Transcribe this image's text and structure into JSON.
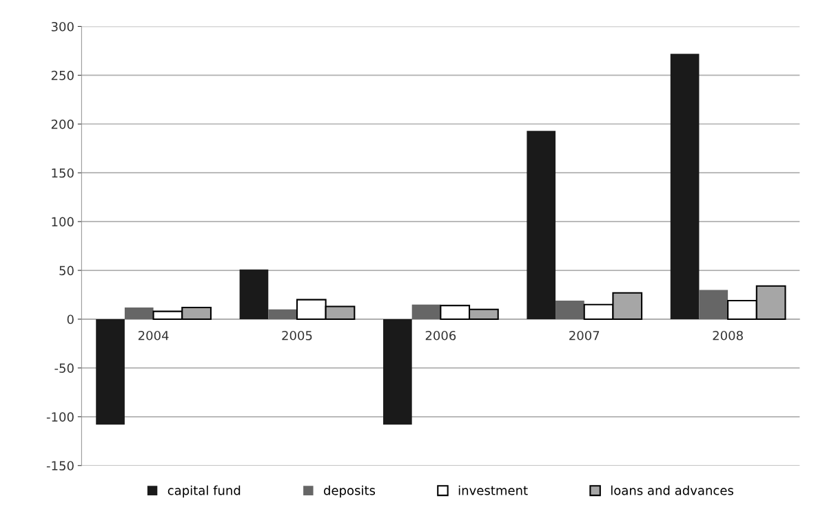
{
  "chart_data": {
    "type": "bar",
    "categories": [
      "2004",
      "2005",
      "2006",
      "2007",
      "2008"
    ],
    "series": [
      {
        "name": "capital fund",
        "color": "#1a1a1a",
        "values": [
          -108,
          51,
          -108,
          193,
          272
        ]
      },
      {
        "name": "deposits",
        "color": "#666666",
        "values": [
          12,
          10,
          15,
          19,
          30
        ]
      },
      {
        "name": "investment",
        "color": "#ffffff",
        "values": [
          8,
          20,
          14,
          15,
          19
        ]
      },
      {
        "name": "loans and advances",
        "color": "#a6a6a6",
        "values": [
          12,
          13,
          10,
          27,
          34
        ]
      }
    ],
    "ylim": [
      -150,
      300
    ],
    "yticks": [
      -150,
      -100,
      -50,
      0,
      50,
      100,
      150,
      200,
      250,
      300
    ],
    "grid": "y",
    "legend": "bottom"
  }
}
